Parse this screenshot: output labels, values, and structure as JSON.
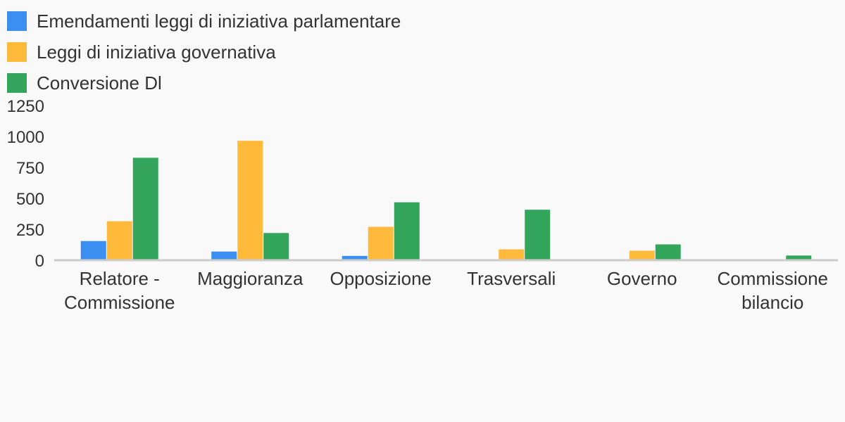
{
  "chart_data": {
    "type": "bar",
    "title": "",
    "xlabel": "",
    "ylabel": "",
    "ylim": [
      0,
      1250
    ],
    "yticks": [
      0,
      250,
      500,
      750,
      1000,
      1250
    ],
    "grid": false,
    "legend_position": "top-left",
    "categories": [
      [
        "Relatore -",
        "Commissione"
      ],
      [
        "Maggioranza"
      ],
      [
        "Opposizione"
      ],
      [
        "Trasversali"
      ],
      [
        "Governo"
      ],
      [
        "Commissione",
        "bilancio"
      ]
    ],
    "series": [
      {
        "name": "Emendamenti leggi di iniziativa parlamentare",
        "color": "#3a8ff0",
        "values": [
          155,
          70,
          35,
          0,
          0,
          0
        ]
      },
      {
        "name": "Leggi di iniziativa governativa",
        "color": "#ffb93b",
        "values": [
          315,
          965,
          270,
          88,
          77,
          0
        ]
      },
      {
        "name": "Conversione Dl",
        "color": "#33a65c",
        "values": [
          828,
          220,
          468,
          408,
          128,
          38
        ]
      }
    ]
  }
}
